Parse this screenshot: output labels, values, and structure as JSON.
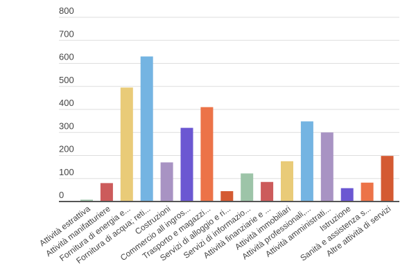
{
  "chart_data": {
    "type": "bar",
    "title": "",
    "xlabel": "",
    "ylabel": "",
    "ylim": [
      0,
      800
    ],
    "yticks": [
      0,
      100,
      200,
      300,
      400,
      500,
      600,
      700,
      800
    ],
    "grid": true,
    "legend": "none",
    "categories": [
      "Attività estrattiva",
      "Attività manifatturiere",
      "Fornitura di energia e...",
      "Fornitura di acqua; reti...",
      "Costruzioni",
      "Commercio all ingros...",
      "Trasporto e magazzi...",
      "Servizi di alloggio e ri...",
      "Servizi di informazio...",
      "Attività finanziarie e ...",
      "Attività immobiliari",
      "Attività professionali,...",
      "Attività amministrati...",
      "Istruzione",
      "Sanità e assistenza s...",
      "Altre attività di servizi"
    ],
    "values": [
      8,
      80,
      495,
      630,
      170,
      320,
      410,
      45,
      122,
      85,
      175,
      348,
      300,
      58,
      82,
      198
    ],
    "colors": [
      "#9dc4a8",
      "#cc5b5b",
      "#e9cb78",
      "#74b4e2",
      "#a893c3",
      "#6b57d2",
      "#ec7348",
      "#d45a32",
      "#9dc4a8",
      "#cc5b5b",
      "#e9cb78",
      "#74b4e2",
      "#a893c3",
      "#6b57d2",
      "#ec7348",
      "#d45a32"
    ]
  }
}
